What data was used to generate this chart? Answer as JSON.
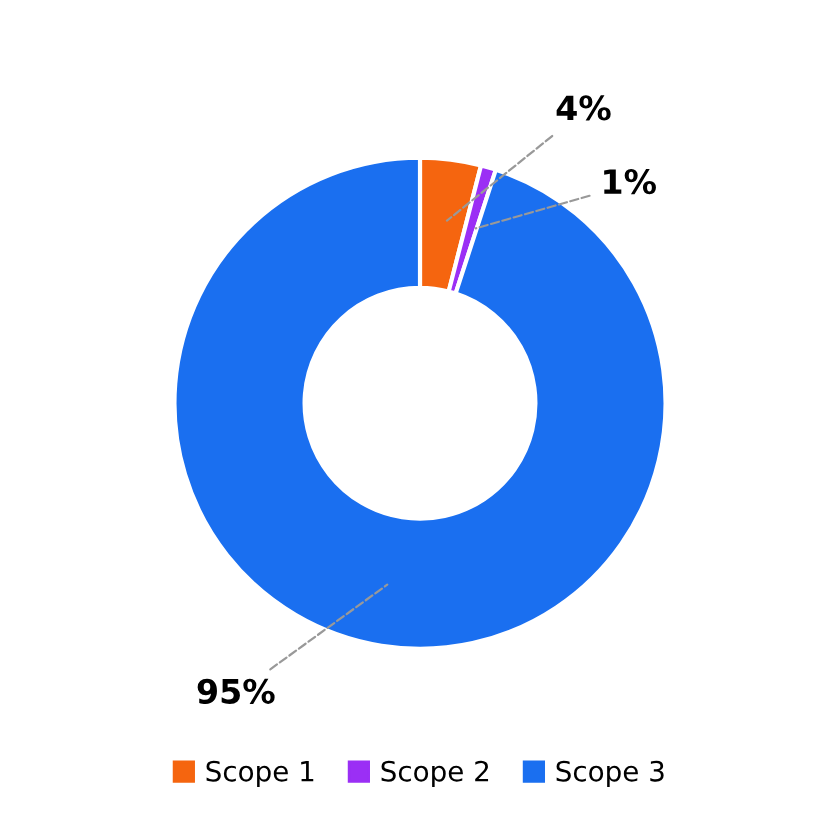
{
  "chart_data": {
    "type": "donut",
    "categories": [
      "Scope 1",
      "Scope 2",
      "Scope 3"
    ],
    "values": [
      4,
      1,
      95
    ],
    "colors": [
      "#f5650f",
      "#9b2ff5",
      "#1a6ff0"
    ],
    "value_labels": [
      "4%",
      "1%",
      "95%"
    ],
    "legend": "bottom"
  }
}
